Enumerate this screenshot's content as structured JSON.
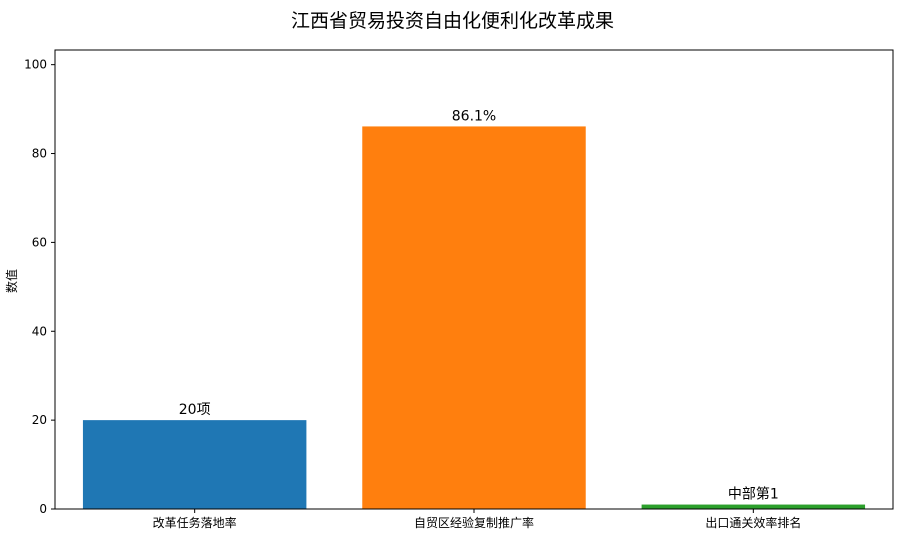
{
  "chart_data": {
    "type": "bar",
    "title": "江西省贸易投资自由化便利化改革成果",
    "xlabel": "",
    "ylabel": "数值",
    "categories": [
      "改革任务落地率",
      "自贸区经验复制推广率",
      "出口通关效率排名"
    ],
    "values": [
      20,
      86.1,
      1
    ],
    "data_labels": [
      "20项",
      "86.1%",
      "中部第1"
    ],
    "colors": [
      "#1f77b4",
      "#ff7f0e",
      "#2ca02c"
    ],
    "ylim": [
      0,
      103.3
    ],
    "yticks": [
      0,
      20,
      40,
      60,
      80,
      100
    ],
    "grid": false,
    "legend": "none"
  }
}
